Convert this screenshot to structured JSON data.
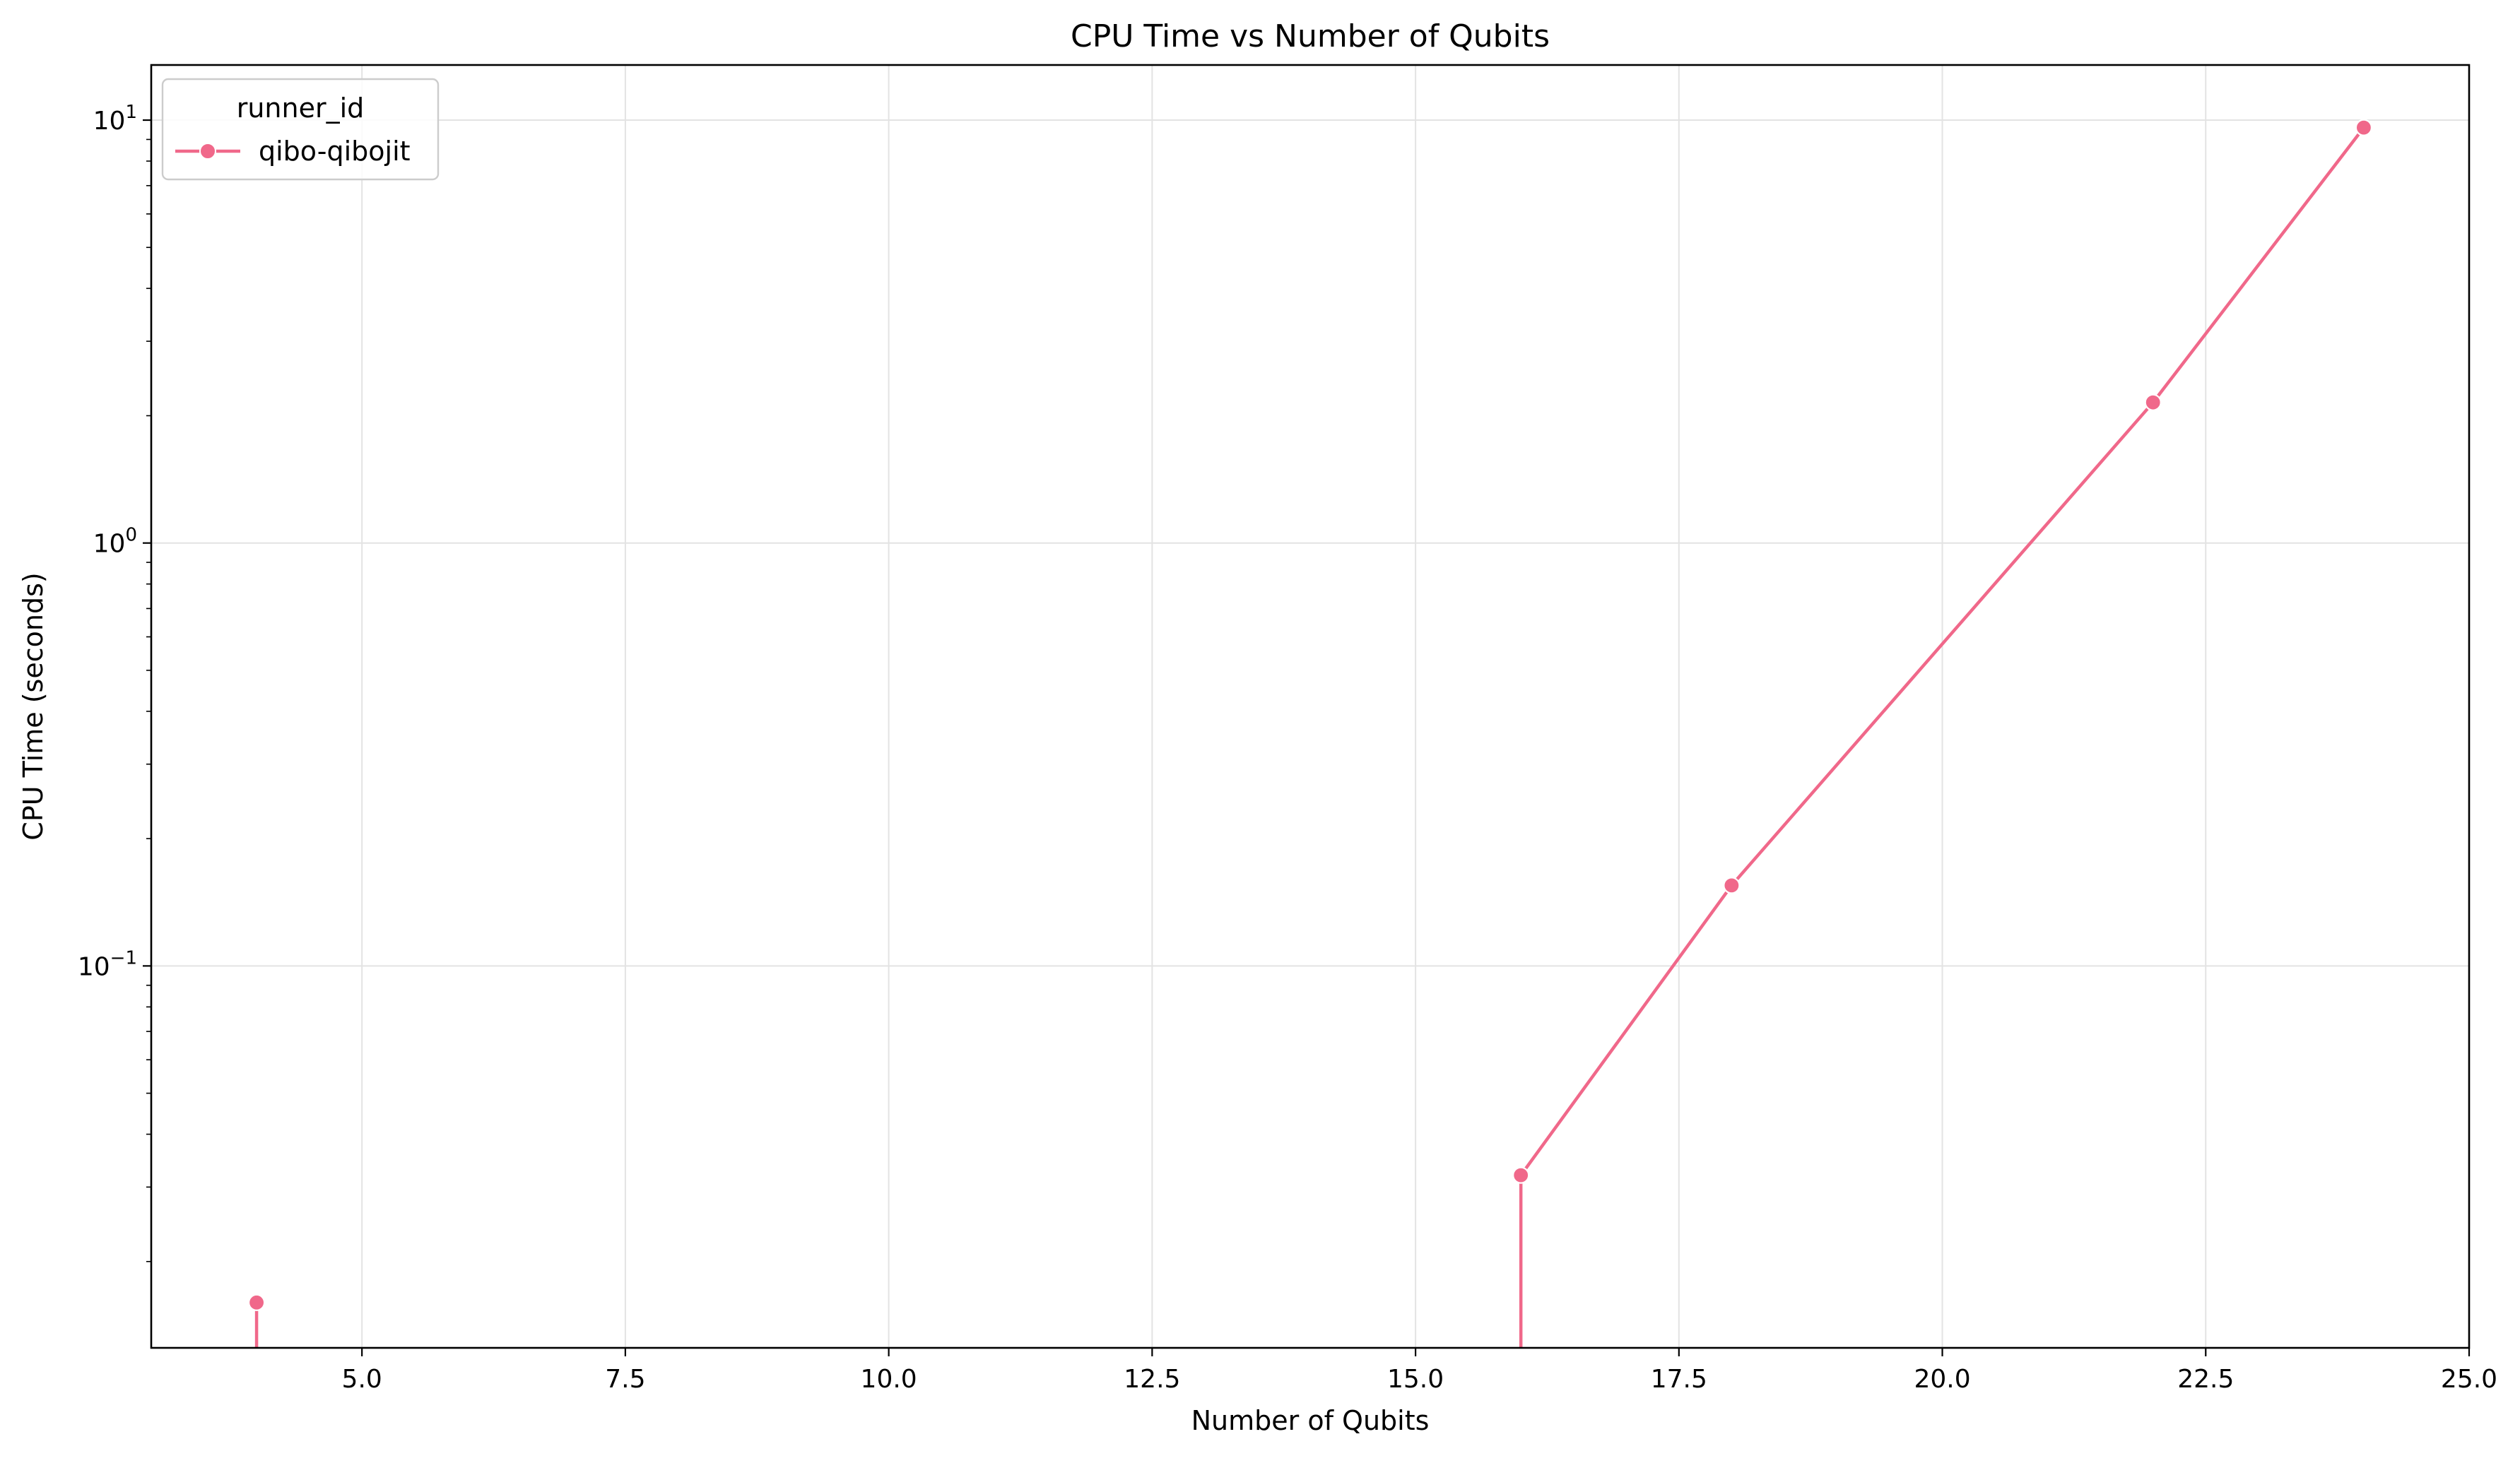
{
  "chart_data": {
    "type": "line",
    "title": "CPU Time vs Number of Qubits",
    "xlabel": "Number of Qubits",
    "ylabel": "CPU Time (seconds)",
    "xlim": [
      3.0,
      25.0
    ],
    "ylim": [
      0.0125,
      13.5
    ],
    "yscale": "log",
    "grid": true,
    "legend": {
      "title": "runner_id",
      "placement": "top-left"
    },
    "x_ticks": [
      {
        "value": 5.0,
        "label": "5.0"
      },
      {
        "value": 7.5,
        "label": "7.5"
      },
      {
        "value": 10.0,
        "label": "10.0"
      },
      {
        "value": 12.5,
        "label": "12.5"
      },
      {
        "value": 15.0,
        "label": "15.0"
      },
      {
        "value": 17.5,
        "label": "17.5"
      },
      {
        "value": 20.0,
        "label": "20.0"
      },
      {
        "value": 22.5,
        "label": "22.5"
      },
      {
        "value": 25.0,
        "label": "25.0"
      }
    ],
    "y_ticks": [
      {
        "value": 0.1,
        "base": "10",
        "exp": "−1"
      },
      {
        "value": 1,
        "base": "10",
        "exp": "0"
      },
      {
        "value": 10,
        "base": "10",
        "exp": "1"
      }
    ],
    "series": [
      {
        "name": "qibo-qibojit",
        "color": "#f0688a",
        "x": [
          4,
          16,
          18,
          22,
          24
        ],
        "y": [
          0.016,
          0.032,
          0.155,
          2.15,
          9.6
        ],
        "drop_to_axis": [
          4,
          16
        ]
      }
    ]
  }
}
